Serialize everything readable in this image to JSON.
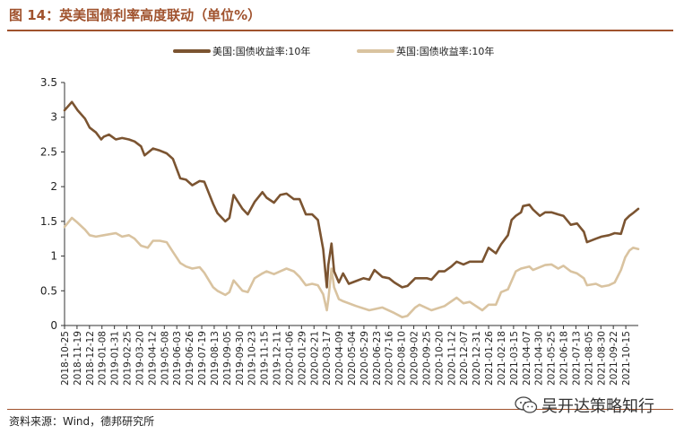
{
  "title": "图 14：英美国债利率高度联动（单位%）",
  "source": "资料来源：Wind，德邦研究所",
  "watermark": {
    "text": "吴开达策略知行",
    "icon": "wechat-icon"
  },
  "chart_data": {
    "type": "line",
    "legend_position": "top-center",
    "grid": false,
    "ylim": [
      0,
      3.5
    ],
    "yticks": [
      "0",
      "0.5",
      "1",
      "1.5",
      "2",
      "2.5",
      "3",
      "3.5"
    ],
    "xlim": [
      "2018-10-25",
      "2021-10-25"
    ],
    "xticks": [
      "2018-10-25",
      "2018-11-19",
      "2018-12-12",
      "2019-01-08",
      "2019-01-31",
      "2019-02-25",
      "2019-03-20",
      "2019-04-12",
      "2019-05-08",
      "2019-06-03",
      "2019-06-26",
      "2019-07-19",
      "2019-08-13",
      "2019-09-05",
      "2019-09-30",
      "2019-10-23",
      "2019-11-15",
      "2019-12-11",
      "2020-01-06",
      "2020-01-29",
      "2020-02-21",
      "2020-03-17",
      "2020-04-09",
      "2020-05-04",
      "2020-05-29",
      "2020-06-23",
      "2020-07-16",
      "2020-08-10",
      "2020-09-02",
      "2020-09-25",
      "2020-10-20",
      "2020-11-12",
      "2020-12-07",
      "2020-12-31",
      "2021-01-26",
      "2021-02-18",
      "2021-03-15",
      "2021-04-07",
      "2021-04-30",
      "2021-05-25",
      "2021-06-18",
      "2021-07-13",
      "2021-08-05",
      "2021-08-30",
      "2021-09-22",
      "2021-10-15"
    ],
    "series": [
      {
        "name": "美国:国债收益率:10年",
        "color": "#7b5431",
        "x": [
          "2018-10-25",
          "2018-11-08",
          "2018-11-19",
          "2018-12-03",
          "2018-12-12",
          "2018-12-24",
          "2019-01-03",
          "2019-01-08",
          "2019-01-18",
          "2019-01-31",
          "2019-02-12",
          "2019-02-25",
          "2019-03-08",
          "2019-03-20",
          "2019-03-27",
          "2019-04-12",
          "2019-04-25",
          "2019-05-08",
          "2019-05-20",
          "2019-06-03",
          "2019-06-14",
          "2019-06-26",
          "2019-07-10",
          "2019-07-19",
          "2019-08-05",
          "2019-08-13",
          "2019-08-28",
          "2019-09-05",
          "2019-09-13",
          "2019-09-30",
          "2019-10-10",
          "2019-10-23",
          "2019-11-07",
          "2019-11-15",
          "2019-11-29",
          "2019-12-11",
          "2019-12-23",
          "2020-01-06",
          "2020-01-17",
          "2020-01-29",
          "2020-02-10",
          "2020-02-21",
          "2020-03-02",
          "2020-03-09",
          "2020-03-12",
          "2020-03-18",
          "2020-03-23",
          "2020-04-01",
          "2020-04-09",
          "2020-04-20",
          "2020-05-04",
          "2020-05-18",
          "2020-05-29",
          "2020-06-08",
          "2020-06-23",
          "2020-07-06",
          "2020-07-16",
          "2020-07-31",
          "2020-08-10",
          "2020-08-25",
          "2020-09-02",
          "2020-09-16",
          "2020-09-25",
          "2020-10-09",
          "2020-10-20",
          "2020-11-02",
          "2020-11-12",
          "2020-11-25",
          "2020-12-07",
          "2020-12-18",
          "2020-12-31",
          "2021-01-12",
          "2021-01-26",
          "2021-02-05",
          "2021-02-18",
          "2021-02-25",
          "2021-03-05",
          "2021-03-15",
          "2021-03-19",
          "2021-03-31",
          "2021-04-07",
          "2021-04-20",
          "2021-04-30",
          "2021-05-12",
          "2021-05-25",
          "2021-06-04",
          "2021-06-18",
          "2021-06-30",
          "2021-07-13",
          "2021-07-19",
          "2021-08-05",
          "2021-08-16",
          "2021-08-30",
          "2021-09-10",
          "2021-09-22",
          "2021-09-30",
          "2021-10-08",
          "2021-10-15",
          "2021-10-25"
        ],
        "values": [
          3.1,
          3.22,
          3.1,
          2.98,
          2.85,
          2.78,
          2.68,
          2.72,
          2.75,
          2.68,
          2.7,
          2.68,
          2.65,
          2.58,
          2.45,
          2.55,
          2.52,
          2.48,
          2.4,
          2.12,
          2.1,
          2.02,
          2.08,
          2.07,
          1.75,
          1.62,
          1.5,
          1.55,
          1.88,
          1.68,
          1.6,
          1.78,
          1.92,
          1.84,
          1.77,
          1.88,
          1.9,
          1.82,
          1.82,
          1.6,
          1.6,
          1.52,
          1.1,
          0.55,
          0.88,
          1.18,
          0.78,
          0.62,
          0.75,
          0.6,
          0.64,
          0.68,
          0.66,
          0.8,
          0.7,
          0.68,
          0.62,
          0.55,
          0.57,
          0.68,
          0.68,
          0.68,
          0.66,
          0.78,
          0.78,
          0.85,
          0.92,
          0.88,
          0.92,
          0.92,
          0.92,
          1.12,
          1.04,
          1.17,
          1.3,
          1.52,
          1.58,
          1.63,
          1.72,
          1.74,
          1.67,
          1.58,
          1.63,
          1.63,
          1.6,
          1.58,
          1.45,
          1.47,
          1.35,
          1.2,
          1.25,
          1.28,
          1.3,
          1.33,
          1.32,
          1.52,
          1.58,
          1.62,
          1.68
        ]
      },
      {
        "name": "英国:国债收益率:10年",
        "color": "#d9c3a0",
        "x": [
          "2018-10-25",
          "2018-11-08",
          "2018-11-19",
          "2018-12-03",
          "2018-12-12",
          "2018-12-24",
          "2019-01-08",
          "2019-01-31",
          "2019-02-12",
          "2019-02-25",
          "2019-03-08",
          "2019-03-20",
          "2019-04-02",
          "2019-04-12",
          "2019-04-25",
          "2019-05-08",
          "2019-05-20",
          "2019-06-03",
          "2019-06-14",
          "2019-06-26",
          "2019-07-10",
          "2019-07-19",
          "2019-08-05",
          "2019-08-13",
          "2019-08-28",
          "2019-09-05",
          "2019-09-13",
          "2019-09-30",
          "2019-10-10",
          "2019-10-23",
          "2019-11-07",
          "2019-11-15",
          "2019-11-29",
          "2019-12-11",
          "2019-12-23",
          "2020-01-06",
          "2020-01-17",
          "2020-01-29",
          "2020-02-10",
          "2020-02-21",
          "2020-03-02",
          "2020-03-09",
          "2020-03-12",
          "2020-03-18",
          "2020-03-23",
          "2020-04-01",
          "2020-04-09",
          "2020-05-04",
          "2020-05-29",
          "2020-06-23",
          "2020-07-16",
          "2020-07-31",
          "2020-08-10",
          "2020-08-25",
          "2020-09-02",
          "2020-09-25",
          "2020-10-20",
          "2020-11-12",
          "2020-11-25",
          "2020-12-07",
          "2020-12-31",
          "2021-01-12",
          "2021-01-26",
          "2021-02-05",
          "2021-02-18",
          "2021-03-05",
          "2021-03-15",
          "2021-03-31",
          "2021-04-07",
          "2021-04-30",
          "2021-05-12",
          "2021-05-25",
          "2021-06-04",
          "2021-06-18",
          "2021-06-30",
          "2021-07-13",
          "2021-07-19",
          "2021-08-05",
          "2021-08-16",
          "2021-08-30",
          "2021-09-10",
          "2021-09-22",
          "2021-09-30",
          "2021-10-08",
          "2021-10-15",
          "2021-10-25"
        ],
        "values": [
          1.42,
          1.55,
          1.48,
          1.38,
          1.3,
          1.28,
          1.3,
          1.33,
          1.28,
          1.3,
          1.25,
          1.15,
          1.12,
          1.22,
          1.22,
          1.2,
          1.06,
          0.9,
          0.85,
          0.82,
          0.84,
          0.76,
          0.55,
          0.5,
          0.44,
          0.48,
          0.65,
          0.5,
          0.48,
          0.68,
          0.75,
          0.78,
          0.74,
          0.78,
          0.82,
          0.78,
          0.7,
          0.58,
          0.6,
          0.58,
          0.45,
          0.22,
          0.38,
          0.82,
          0.55,
          0.38,
          0.35,
          0.28,
          0.22,
          0.26,
          0.18,
          0.12,
          0.14,
          0.26,
          0.3,
          0.22,
          0.28,
          0.4,
          0.32,
          0.34,
          0.22,
          0.3,
          0.3,
          0.48,
          0.52,
          0.78,
          0.82,
          0.85,
          0.8,
          0.87,
          0.88,
          0.82,
          0.86,
          0.78,
          0.75,
          0.68,
          0.58,
          0.6,
          0.56,
          0.58,
          0.62,
          0.8,
          0.98,
          1.08,
          1.12,
          1.1
        ]
      }
    ]
  }
}
